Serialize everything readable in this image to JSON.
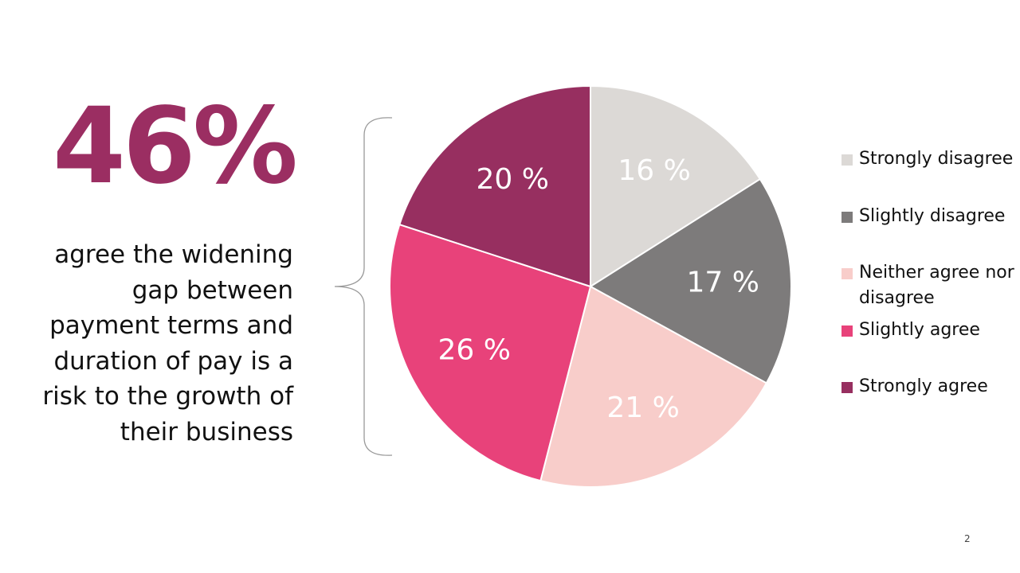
{
  "stat": {
    "value": "46%",
    "caption": "agree the widening gap between payment terms and duration of pay is a risk to the growth of their business"
  },
  "page_number": "2",
  "chart_data": {
    "type": "pie",
    "title": "",
    "start_angle_deg": 0,
    "direction": "clockwise",
    "legend_position": "right",
    "slices": [
      {
        "name": "Strongly disagree",
        "value": 16,
        "label": "16 %",
        "color": "#dcd9d6"
      },
      {
        "name": "Slightly disagree",
        "value": 17,
        "label": "17 %",
        "color": "#7d7b7b"
      },
      {
        "name": "Neither agree nor disagree",
        "value": 21,
        "label": "21 %",
        "color": "#f8cdca"
      },
      {
        "name": "Slightly agree",
        "value": 26,
        "label": "26 %",
        "color": "#e8427a"
      },
      {
        "name": "Strongly agree",
        "value": 20,
        "label": "20 %",
        "color": "#972f60"
      }
    ]
  },
  "colors": {
    "accent": "#9b2e62",
    "text": "#111111",
    "bracket": "#999999",
    "background": "#ffffff"
  }
}
